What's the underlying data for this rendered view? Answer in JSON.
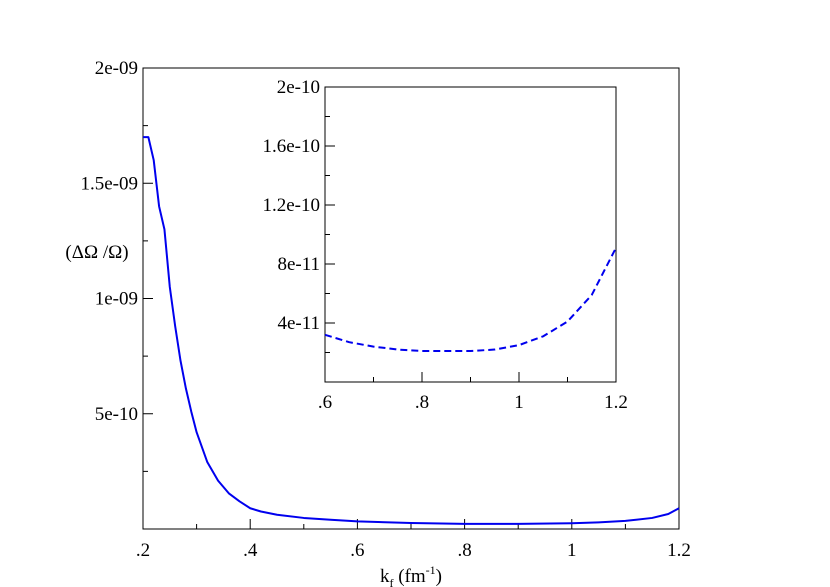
{
  "chart_data": [
    {
      "type": "line",
      "xlabel": {
        "main": "k",
        "subscript": "f",
        "unit_open": " (fm",
        "superscript": "-1",
        "unit_close": ")"
      },
      "ylabel": "(ΔΩ /Ω)",
      "xlim": [
        0.2,
        1.2
      ],
      "ylim": [
        0,
        2e-09
      ],
      "x_ticks": [
        0.2,
        0.4,
        0.6,
        0.8,
        1.0,
        1.2
      ],
      "x_tick_labels": [
        ".2",
        ".4",
        ".6",
        ".8",
        "1",
        "1.2"
      ],
      "y_ticks": [
        5e-10,
        1e-09,
        1.5e-09,
        2e-09
      ],
      "y_tick_labels": [
        "5e-10",
        "1e-09",
        "1.5e-09",
        "2e-09"
      ],
      "grid": false,
      "series": [
        {
          "color": "#0000ee",
          "dash": "solid",
          "x": [
            0.2,
            0.21,
            0.22,
            0.23,
            0.24,
            0.25,
            0.26,
            0.27,
            0.28,
            0.29,
            0.3,
            0.32,
            0.34,
            0.36,
            0.38,
            0.4,
            0.42,
            0.45,
            0.5,
            0.55,
            0.6,
            0.7,
            0.8,
            0.9,
            1.0,
            1.05,
            1.1,
            1.15,
            1.18,
            1.2
          ],
          "y": [
            1.7e-09,
            1.7e-09,
            1.6e-09,
            1.4e-09,
            1.3e-09,
            1.05e-09,
            8.8e-10,
            7.3e-10,
            6.1e-10,
            5.1e-10,
            4.2e-10,
            2.9e-10,
            2.1e-10,
            1.55e-10,
            1.2e-10,
            9e-11,
            7.6e-11,
            6.2e-11,
            4.8e-11,
            4e-11,
            3.3e-11,
            2.6e-11,
            2.2e-11,
            2.2e-11,
            2.5e-11,
            2.9e-11,
            3.5e-11,
            4.8e-11,
            6.5e-11,
            9e-11
          ]
        }
      ]
    },
    {
      "type": "line",
      "inset": true,
      "xlim": [
        0.6,
        1.2
      ],
      "ylim": [
        0,
        2e-10
      ],
      "x_ticks": [
        0.6,
        0.8,
        1.0,
        1.2
      ],
      "x_tick_labels": [
        ".6",
        ".8",
        "1",
        "1.2"
      ],
      "y_ticks": [
        4e-11,
        8e-11,
        1.2e-10,
        1.6e-10,
        2e-10
      ],
      "y_tick_labels": [
        "4e-11",
        "8e-11",
        "1.2e-10",
        "1.6e-10",
        "2e-10"
      ],
      "grid": false,
      "series": [
        {
          "color": "#0000ee",
          "dash": "dashed",
          "x": [
            0.6,
            0.65,
            0.7,
            0.75,
            0.8,
            0.85,
            0.9,
            0.95,
            1.0,
            1.05,
            1.1,
            1.15,
            1.2
          ],
          "y": [
            3.2e-11,
            2.7e-11,
            2.4e-11,
            2.2e-11,
            2.1e-11,
            2.1e-11,
            2.1e-11,
            2.2e-11,
            2.5e-11,
            3.1e-11,
            4.1e-11,
            5.9e-11,
            9.1e-11
          ]
        }
      ]
    }
  ]
}
